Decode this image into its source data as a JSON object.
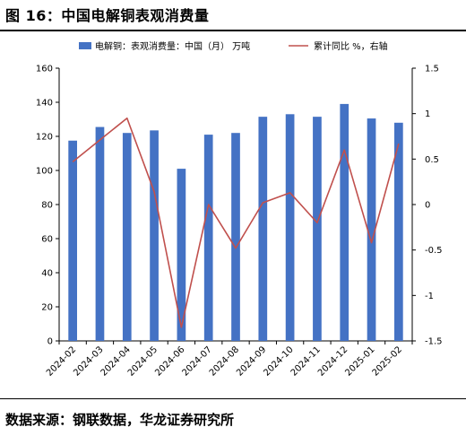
{
  "header": {
    "title": "图 16：中国电解铜表观消费量"
  },
  "footer": {
    "source": "数据来源：钢联数据，华龙证券研究所"
  },
  "colors": {
    "bar": "#4472C4",
    "line": "#C0504D"
  },
  "chart_data": {
    "type": "bar+line",
    "categories": [
      "2024-02",
      "2024-03",
      "2024-04",
      "2024-05",
      "2024-06",
      "2024-07",
      "2024-08",
      "2024-09",
      "2024-10",
      "2024-11",
      "2024-12",
      "2025-01",
      "2025-02"
    ],
    "series": [
      {
        "name": "电解铜：表观消费量：中国（月）  万吨",
        "type": "bar",
        "axis": "left",
        "values": [
          117.5,
          125.5,
          122,
          123.5,
          101,
          121,
          122,
          131.5,
          133,
          131.5,
          139,
          130.5,
          128
        ]
      },
      {
        "name": "累计同比 %，右轴",
        "type": "line",
        "axis": "right",
        "values": [
          0.47,
          0.71,
          0.95,
          0.14,
          -1.35,
          0.0,
          -0.48,
          0.02,
          0.13,
          -0.2,
          0.6,
          -0.42,
          0.67
        ]
      }
    ],
    "y_left": {
      "lim": [
        0,
        160
      ],
      "ticks": [
        "0",
        "20",
        "40",
        "60",
        "80",
        "100",
        "120",
        "140",
        "160"
      ]
    },
    "y_right": {
      "lim": [
        -1.5,
        1.5
      ],
      "ticks": [
        "-1.5",
        "-1",
        "-0.5",
        "0",
        "0.5",
        "1",
        "1.5"
      ]
    },
    "legend": "top",
    "grid": false
  }
}
